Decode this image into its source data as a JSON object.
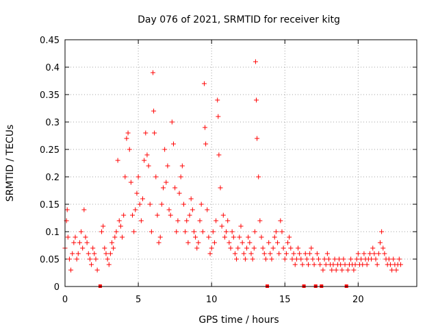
{
  "chart_data": {
    "type": "scatter",
    "title": "Day 076 of 2021, SRMTID for receiver kitg",
    "xlabel": "GPS time / hours",
    "ylabel": "SRMTID / TECUs",
    "xlim": [
      0,
      24
    ],
    "ylim": [
      0,
      0.45
    ],
    "xticks": [
      0,
      5,
      10,
      15,
      20
    ],
    "xtick_labels": [
      "0",
      "5",
      "10",
      "15",
      "20"
    ],
    "yticks": [
      0,
      0.05,
      0.1,
      0.15,
      0.2,
      0.25,
      0.3,
      0.35,
      0.4,
      0.45
    ],
    "ytick_labels": [
      "0",
      "0.05",
      "0.1",
      "0.15",
      "0.2",
      "0.25",
      "0.3",
      "0.35",
      "0.4",
      "0.45"
    ],
    "grid": true,
    "marker": "plus",
    "color": "#ff0000",
    "gap_markers_x": [
      2.4,
      13.8,
      16.3,
      17.1,
      17.5,
      19.2
    ],
    "series": [
      {
        "name": "SRMTID",
        "x": [
          0.0,
          0.1,
          0.15,
          0.2,
          0.3,
          0.4,
          0.5,
          0.6,
          0.7,
          0.8,
          0.9,
          1.0,
          1.1,
          1.2,
          1.3,
          1.4,
          1.5,
          1.6,
          1.7,
          1.8,
          1.9,
          2.0,
          2.1,
          2.2,
          2.5,
          2.6,
          2.7,
          2.8,
          2.9,
          3.0,
          3.1,
          3.2,
          3.3,
          3.4,
          3.5,
          3.6,
          3.7,
          3.8,
          3.9,
          4.0,
          4.1,
          4.2,
          4.3,
          4.4,
          4.5,
          4.6,
          4.7,
          4.8,
          4.9,
          5.0,
          5.1,
          5.2,
          5.3,
          5.4,
          5.5,
          5.6,
          5.7,
          5.8,
          5.9,
          6.0,
          6.05,
          6.1,
          6.2,
          6.3,
          6.4,
          6.5,
          6.6,
          6.7,
          6.8,
          6.9,
          7.0,
          7.1,
          7.2,
          7.3,
          7.4,
          7.5,
          7.6,
          7.7,
          7.8,
          7.9,
          8.0,
          8.1,
          8.2,
          8.3,
          8.4,
          8.5,
          8.6,
          8.7,
          8.8,
          8.9,
          9.0,
          9.1,
          9.2,
          9.3,
          9.4,
          9.5,
          9.55,
          9.6,
          9.7,
          9.8,
          9.9,
          10.0,
          10.1,
          10.2,
          10.3,
          10.4,
          10.45,
          10.5,
          10.6,
          10.7,
          10.8,
          10.9,
          11.0,
          11.1,
          11.2,
          11.3,
          11.4,
          11.5,
          11.6,
          11.7,
          11.8,
          11.9,
          12.0,
          12.1,
          12.2,
          12.3,
          12.4,
          12.5,
          12.6,
          12.7,
          12.8,
          12.9,
          12.95,
          13.0,
          13.05,
          13.1,
          13.2,
          13.3,
          13.4,
          13.5,
          13.6,
          13.7,
          13.9,
          14.0,
          14.1,
          14.2,
          14.3,
          14.4,
          14.5,
          14.6,
          14.7,
          14.8,
          14.9,
          15.0,
          15.1,
          15.2,
          15.3,
          15.4,
          15.5,
          15.6,
          15.7,
          15.8,
          15.9,
          16.0,
          16.1,
          16.2,
          16.4,
          16.5,
          16.6,
          16.7,
          16.8,
          16.9,
          17.0,
          17.2,
          17.3,
          17.4,
          17.6,
          17.7,
          17.8,
          17.9,
          18.0,
          18.1,
          18.2,
          18.3,
          18.4,
          18.5,
          18.6,
          18.7,
          18.8,
          18.9,
          19.0,
          19.1,
          19.3,
          19.4,
          19.5,
          19.6,
          19.7,
          19.8,
          19.9,
          20.0,
          20.1,
          20.2,
          20.3,
          20.4,
          20.5,
          20.6,
          20.7,
          20.8,
          20.9,
          21.0,
          21.1,
          21.2,
          21.3,
          21.4,
          21.5,
          21.6,
          21.7,
          21.8,
          21.9,
          22.0,
          22.1,
          22.2,
          22.3,
          22.4,
          22.5,
          22.6,
          22.7,
          22.8,
          22.9
        ],
        "y": [
          0.07,
          0.12,
          0.14,
          0.09,
          0.05,
          0.03,
          0.06,
          0.08,
          0.09,
          0.05,
          0.06,
          0.08,
          0.1,
          0.07,
          0.14,
          0.09,
          0.08,
          0.06,
          0.05,
          0.04,
          0.07,
          0.06,
          0.05,
          0.03,
          0.1,
          0.11,
          0.07,
          0.06,
          0.05,
          0.04,
          0.06,
          0.08,
          0.07,
          0.09,
          0.1,
          0.23,
          0.12,
          0.11,
          0.09,
          0.13,
          0.2,
          0.27,
          0.28,
          0.25,
          0.19,
          0.13,
          0.1,
          0.14,
          0.17,
          0.2,
          0.15,
          0.12,
          0.16,
          0.23,
          0.28,
          0.24,
          0.22,
          0.15,
          0.1,
          0.39,
          0.32,
          0.28,
          0.2,
          0.13,
          0.08,
          0.09,
          0.15,
          0.18,
          0.25,
          0.19,
          0.22,
          0.14,
          0.13,
          0.3,
          0.26,
          0.18,
          0.1,
          0.12,
          0.17,
          0.2,
          0.22,
          0.15,
          0.1,
          0.12,
          0.08,
          0.13,
          0.16,
          0.14,
          0.1,
          0.09,
          0.07,
          0.08,
          0.12,
          0.15,
          0.1,
          0.37,
          0.29,
          0.26,
          0.14,
          0.09,
          0.06,
          0.07,
          0.1,
          0.08,
          0.12,
          0.34,
          0.31,
          0.24,
          0.18,
          0.11,
          0.13,
          0.09,
          0.1,
          0.12,
          0.08,
          0.07,
          0.1,
          0.09,
          0.06,
          0.05,
          0.07,
          0.09,
          0.11,
          0.08,
          0.06,
          0.05,
          0.07,
          0.09,
          0.08,
          0.06,
          0.05,
          0.07,
          0.1,
          0.41,
          0.34,
          0.27,
          0.2,
          0.12,
          0.09,
          0.07,
          0.06,
          0.05,
          0.08,
          0.06,
          0.05,
          0.07,
          0.09,
          0.1,
          0.08,
          0.06,
          0.12,
          0.1,
          0.07,
          0.05,
          0.06,
          0.08,
          0.09,
          0.07,
          0.05,
          0.06,
          0.04,
          0.05,
          0.07,
          0.06,
          0.05,
          0.04,
          0.06,
          0.05,
          0.04,
          0.06,
          0.07,
          0.05,
          0.04,
          0.06,
          0.05,
          0.04,
          0.03,
          0.05,
          0.04,
          0.06,
          0.05,
          0.04,
          0.03,
          0.04,
          0.05,
          0.03,
          0.04,
          0.05,
          0.04,
          0.03,
          0.05,
          0.04,
          0.03,
          0.04,
          0.05,
          0.04,
          0.03,
          0.04,
          0.05,
          0.06,
          0.04,
          0.05,
          0.04,
          0.06,
          0.05,
          0.04,
          0.05,
          0.06,
          0.05,
          0.07,
          0.06,
          0.05,
          0.04,
          0.06,
          0.08,
          0.1,
          0.07,
          0.06,
          0.05,
          0.04,
          0.05,
          0.04,
          0.03,
          0.05,
          0.04,
          0.03,
          0.04,
          0.05,
          0.04
        ]
      }
    ]
  }
}
